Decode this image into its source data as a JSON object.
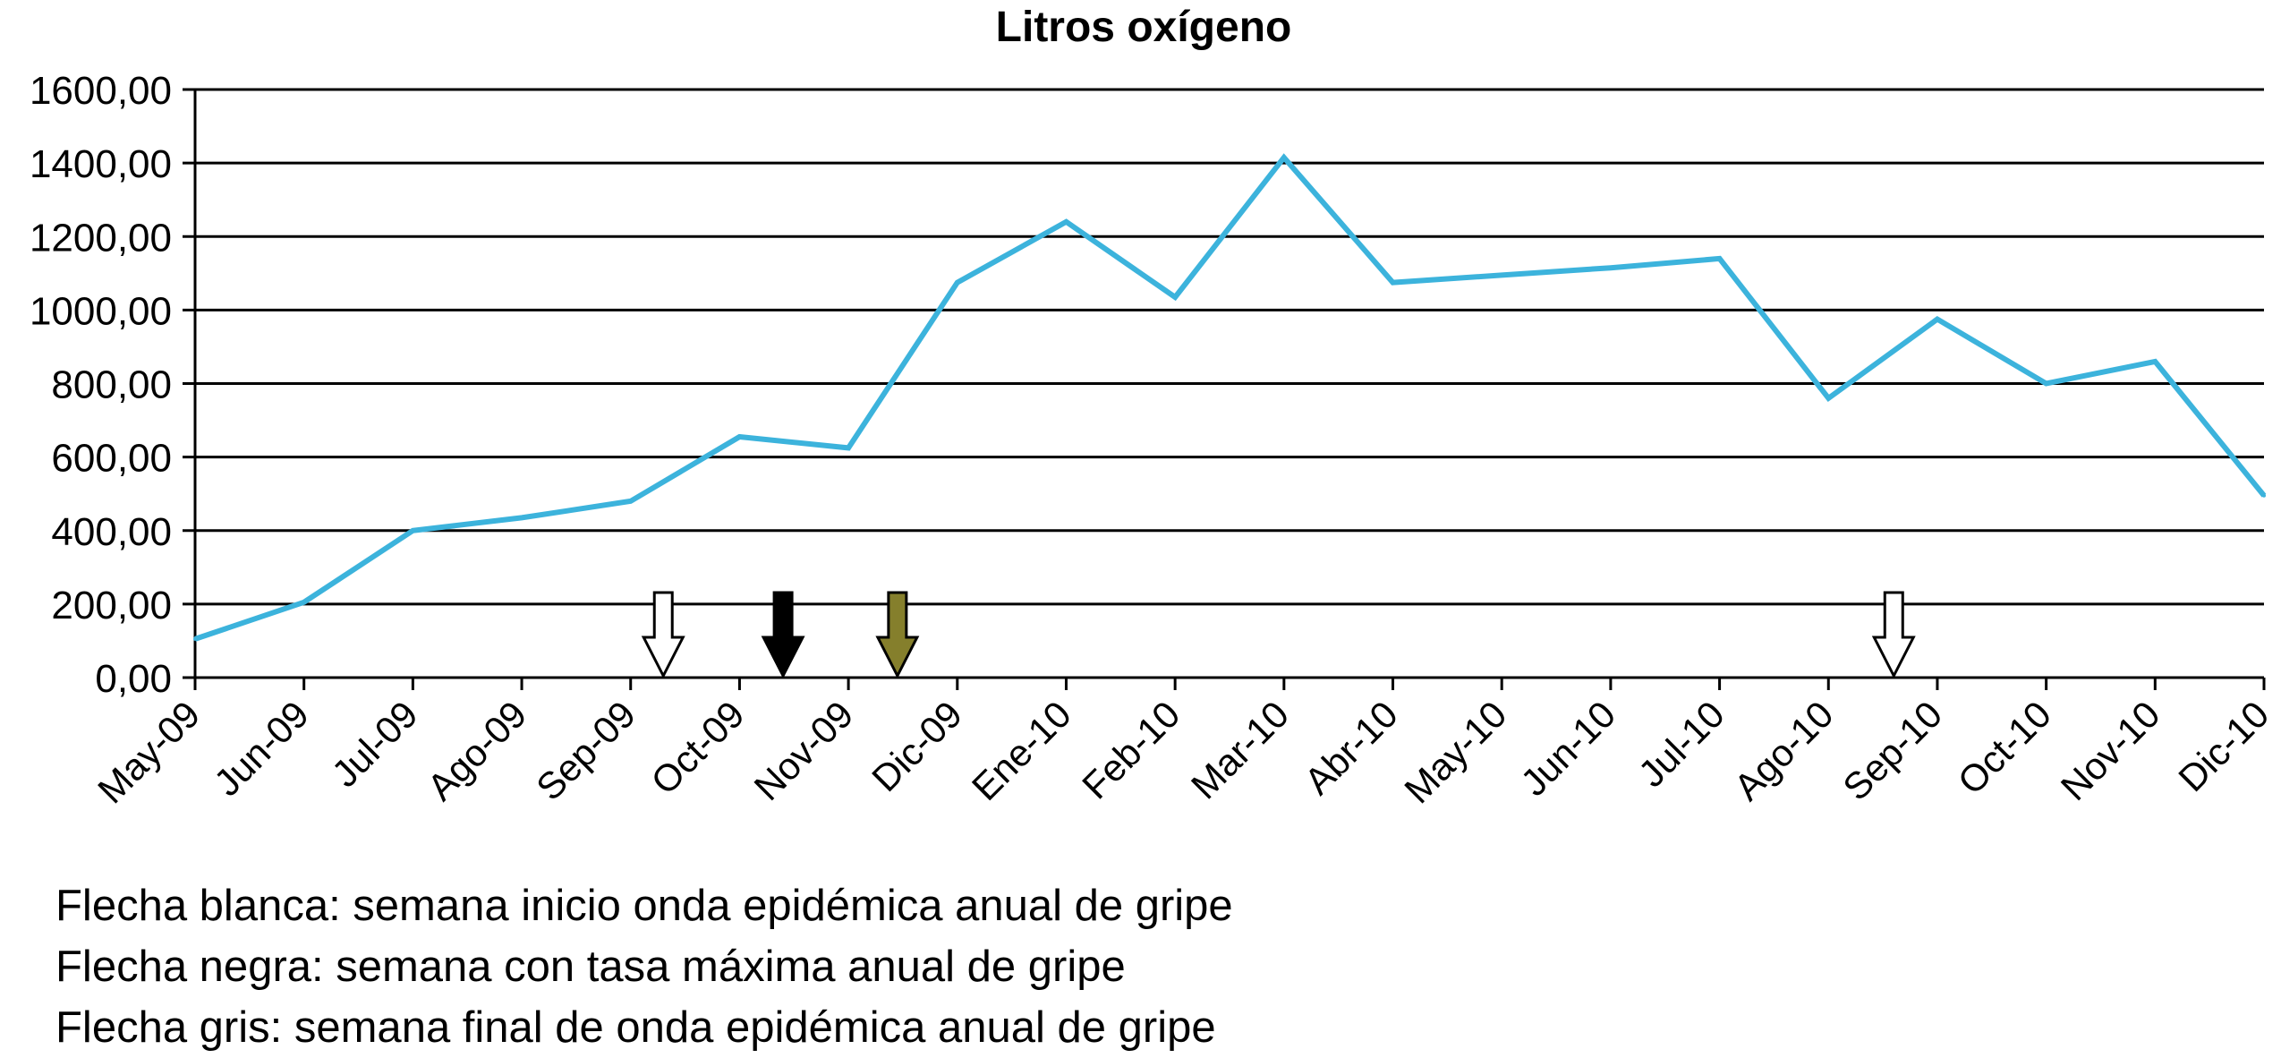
{
  "chart_data": {
    "type": "line",
    "title": "Litros oxígeno",
    "categories": [
      "May-09",
      "Jun-09",
      "Jul-09",
      "Ago-09",
      "Sep-09",
      "Oct-09",
      "Nov-09",
      "Dic-09",
      "Ene-10",
      "Feb-10",
      "Mar-10",
      "Abr-10",
      "May-10",
      "Jun-10",
      "Jul-10",
      "Ago-10",
      "Sep-10",
      "Oct-10",
      "Nov-10",
      "Dic-10"
    ],
    "series": [
      {
        "values": [
          105,
          205,
          400,
          435,
          480,
          655,
          625,
          1075,
          1240,
          1035,
          1415,
          1075,
          1095,
          1115,
          1140,
          760,
          975,
          800,
          860,
          495
        ]
      }
    ],
    "ylim": [
      0,
      1600
    ],
    "yticks": [
      "0,00",
      "200,00",
      "400,00",
      "600,00",
      "800,00",
      "1000,00",
      "1200,00",
      "1400,00",
      "1600,00"
    ],
    "grid": true,
    "line_color": "#3cb3dc",
    "markers": [
      {
        "type": "flecha blanca",
        "x": 4.3,
        "color": "#ffffff"
      },
      {
        "type": "flecha negra",
        "x": 5.4,
        "color": "#000000"
      },
      {
        "type": "flecha gris",
        "x": 6.45,
        "color": "#857f2c"
      },
      {
        "type": "flecha blanca",
        "x": 15.6,
        "color": "#ffffff"
      }
    ]
  },
  "notes": [
    "Flecha blanca: semana inicio onda epidémica anual de gripe",
    "Flecha negra: semana con tasa máxima anual de gripe",
    "Flecha gris: semana final de onda epidémica anual de gripe"
  ]
}
